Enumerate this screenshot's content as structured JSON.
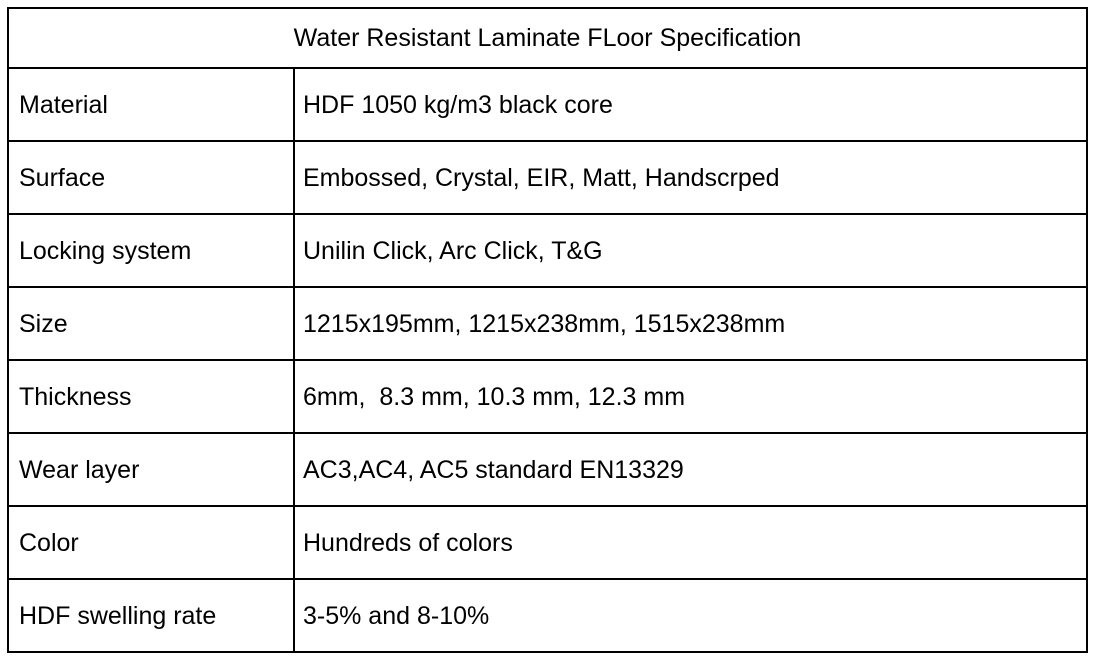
{
  "table": {
    "title": "Water Resistant Laminate FLoor Specification",
    "rows": [
      {
        "label": "Material",
        "value": "HDF 1050 kg/m3 black core"
      },
      {
        "label": "Surface",
        "value": "Embossed, Crystal, EIR, Matt, Handscrped"
      },
      {
        "label": "Locking system",
        "value": "Unilin Click, Arc Click, T&G"
      },
      {
        "label": "Size",
        "value": "1215x195mm, 1215x238mm, 1515x238mm"
      },
      {
        "label": "Thickness",
        "value": "6mm,  8.3 mm, 10.3 mm, 12.3 mm"
      },
      {
        "label": "Wear layer",
        "value": "AC3,AC4, AC5 standard EN13329"
      },
      {
        "label": "Color",
        "value": "Hundreds of colors"
      },
      {
        "label": "HDF swelling rate",
        "value": "3-5% and 8-10%"
      }
    ],
    "colors": {
      "border": "#000000",
      "background": "#ffffff",
      "text": "#000000"
    }
  }
}
